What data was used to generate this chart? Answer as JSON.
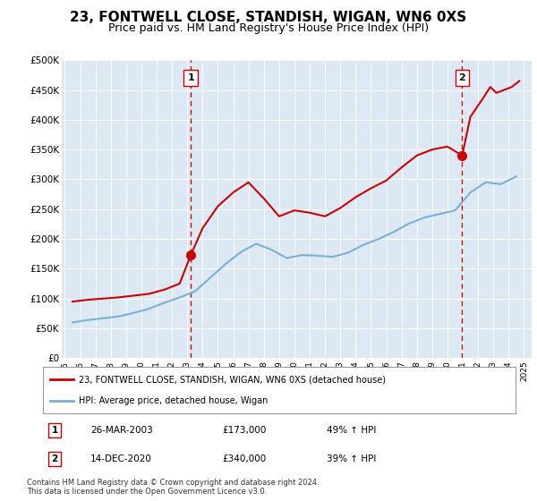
{
  "title": "23, FONTWELL CLOSE, STANDISH, WIGAN, WN6 0XS",
  "subtitle": "Price paid vs. HM Land Registry's House Price Index (HPI)",
  "title_fontsize": 11,
  "subtitle_fontsize": 9,
  "plot_bg_color": "#dce9f5",
  "ylim": [
    0,
    500000
  ],
  "yticks": [
    0,
    50000,
    100000,
    150000,
    200000,
    250000,
    300000,
    350000,
    400000,
    450000,
    500000
  ],
  "ytick_labels": [
    "£0",
    "£50K",
    "£100K",
    "£150K",
    "£200K",
    "£250K",
    "£300K",
    "£350K",
    "£400K",
    "£450K",
    "£500K"
  ],
  "sale1_date_num": 2003.23,
  "sale1_price": 173000,
  "sale1_label": "1",
  "sale2_date_num": 2020.96,
  "sale2_price": 340000,
  "sale2_label": "2",
  "red_line_color": "#cc0000",
  "blue_line_color": "#7bafd4",
  "marker_color": "#cc0000",
  "vline_color": "#cc0000",
  "legend_label_red": "23, FONTWELL CLOSE, STANDISH, WIGAN, WN6 0XS (detached house)",
  "legend_label_blue": "HPI: Average price, detached house, Wigan",
  "table_entries": [
    {
      "num": "1",
      "date": "26-MAR-2003",
      "price": "£173,000",
      "pct": "49% ↑ HPI"
    },
    {
      "num": "2",
      "date": "14-DEC-2020",
      "price": "£340,000",
      "pct": "39% ↑ HPI"
    }
  ],
  "footnote": "Contains HM Land Registry data © Crown copyright and database right 2024.\nThis data is licensed under the Open Government Licence v3.0.",
  "hpi_years": [
    1995.5,
    1996.5,
    1997.5,
    1998.5,
    1999.5,
    2000.5,
    2001.5,
    2002.5,
    2003.5,
    2004.5,
    2005.5,
    2006.5,
    2007.5,
    2008.5,
    2009.5,
    2010.5,
    2011.5,
    2012.5,
    2013.5,
    2014.5,
    2015.5,
    2016.5,
    2017.5,
    2018.5,
    2019.5,
    2020.5,
    2021.5,
    2022.5,
    2023.5,
    2024.5
  ],
  "hpi_values": [
    60000,
    64000,
    67000,
    70000,
    76000,
    83000,
    93000,
    102000,
    112000,
    135000,
    158000,
    178000,
    192000,
    182000,
    168000,
    173000,
    172000,
    170000,
    177000,
    190000,
    200000,
    212000,
    226000,
    236000,
    242000,
    248000,
    278000,
    295000,
    292000,
    305000
  ],
  "red_years": [
    1995.5,
    1996.5,
    1997.5,
    1998.5,
    1999.5,
    2000.5,
    2001.5,
    2002.5,
    2003.23,
    2004.0,
    2005.0,
    2006.0,
    2007.0,
    2008.0,
    2009.0,
    2010.0,
    2011.0,
    2012.0,
    2013.0,
    2014.0,
    2015.0,
    2016.0,
    2017.0,
    2018.0,
    2019.0,
    2020.0,
    2020.96,
    2021.5,
    2022.3,
    2022.8,
    2023.2,
    2023.7,
    2024.2,
    2024.7
  ],
  "red_values": [
    95000,
    98000,
    100000,
    102000,
    105000,
    108000,
    115000,
    125000,
    173000,
    218000,
    255000,
    278000,
    295000,
    268000,
    238000,
    248000,
    244000,
    238000,
    252000,
    270000,
    285000,
    298000,
    320000,
    340000,
    350000,
    355000,
    340000,
    405000,
    435000,
    455000,
    445000,
    450000,
    455000,
    465000
  ]
}
